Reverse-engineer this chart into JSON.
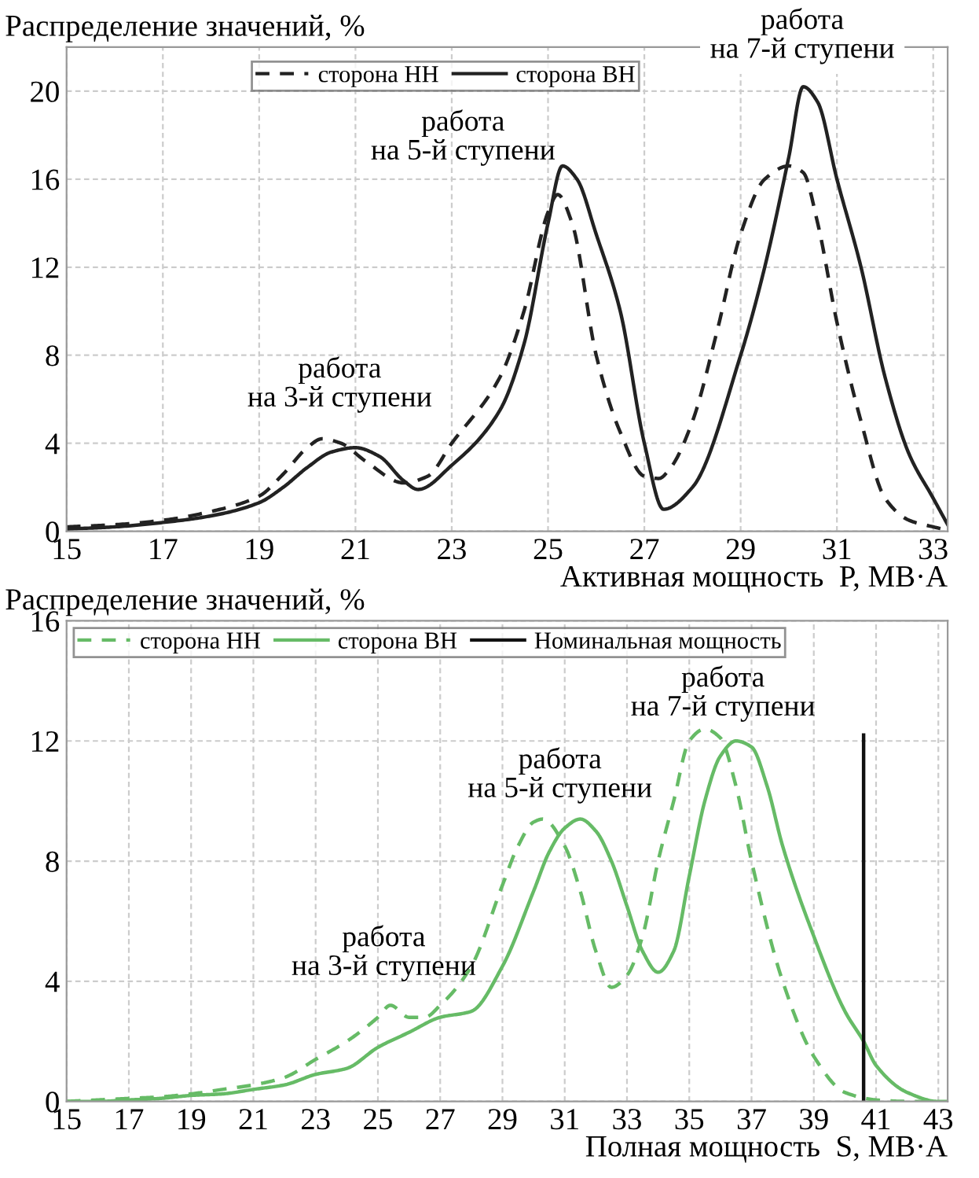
{
  "chart_data": [
    {
      "type": "line",
      "ylabel": "Распределение значений, %",
      "xlabel": "Активная мощность  P, МВ·А",
      "xlim": [
        15,
        33.3
      ],
      "xticks": [
        15,
        17,
        19,
        21,
        23,
        25,
        27,
        29,
        31,
        33
      ],
      "ylim": [
        0,
        22
      ],
      "yticks": [
        0,
        4,
        8,
        12,
        16,
        20
      ],
      "grid": true,
      "legend": "top",
      "marker": "none",
      "series": [
        {
          "name": "сторона НН",
          "color": "#222222",
          "line_style": "dashed",
          "x": [
            15,
            16,
            17,
            18,
            19,
            19.5,
            20,
            20.3,
            20.7,
            21.2,
            22,
            22.5,
            23,
            24,
            24.5,
            25,
            25.2,
            25.5,
            26,
            26.5,
            27,
            27.3,
            27.55,
            28,
            28.5,
            29,
            29.5,
            30,
            30.3,
            30.6,
            31,
            31.5,
            32,
            32.5,
            33,
            33.3
          ],
          "values": [
            0.2,
            0.3,
            0.5,
            0.9,
            1.6,
            2.6,
            3.8,
            4.2,
            4.0,
            3.2,
            2.2,
            2.5,
            4,
            7,
            10,
            14.5,
            15.3,
            14,
            8,
            4.5,
            2.5,
            2.4,
            2.9,
            5,
            9,
            13.5,
            16,
            16.6,
            16.3,
            14,
            9.5,
            5,
            1.5,
            0.5,
            0.2,
            0.05
          ]
        },
        {
          "name": "сторона ВН",
          "color": "#222222",
          "line_style": "solid",
          "x": [
            15,
            16,
            17,
            18,
            19,
            19.5,
            20,
            20.5,
            21,
            21.5,
            22,
            22.3,
            23,
            24,
            24.5,
            25,
            25.3,
            25.6,
            26,
            26.5,
            27,
            27.4,
            28,
            29,
            29.5,
            30,
            30.3,
            30.6,
            31,
            31.5,
            32,
            32.5,
            33,
            33.3
          ],
          "values": [
            0.1,
            0.2,
            0.4,
            0.7,
            1.3,
            2,
            2.9,
            3.6,
            3.8,
            3.4,
            2.3,
            1.9,
            3,
            5.5,
            8.5,
            14,
            16.6,
            16,
            13.5,
            10,
            4,
            1,
            2,
            8,
            12,
            17,
            20.2,
            19.5,
            16,
            12,
            7,
            3.5,
            1.5,
            0.3
          ]
        }
      ],
      "annotations": [
        "работа\nна 3-й ступени",
        "работа\nна 5-й ступени",
        "работа\nна 7-й ступени"
      ]
    },
    {
      "type": "line",
      "ylabel": "Распределение значений, %",
      "xlabel": "Полная мощность  S, МВ·А",
      "xlim": [
        15,
        43.3
      ],
      "xticks": [
        15,
        17,
        19,
        21,
        23,
        25,
        27,
        29,
        31,
        33,
        35,
        37,
        39,
        41,
        43
      ],
      "ylim": [
        0,
        16
      ],
      "yticks": [
        0,
        4,
        8,
        12,
        16
      ],
      "grid": true,
      "legend": "top left",
      "marker": "none",
      "series": [
        {
          "name": "сторона НН",
          "color": "#66bb66",
          "line_style": "dashed",
          "x": [
            15,
            16,
            17,
            18,
            19,
            20,
            21,
            22,
            23,
            24,
            25,
            25.4,
            26,
            26.5,
            27,
            28,
            29,
            29.5,
            30,
            30.3,
            31,
            31.5,
            32,
            32.5,
            33,
            33.5,
            34,
            34.5,
            35,
            35.5,
            36,
            36.5,
            37,
            38,
            39,
            40,
            41,
            42,
            43
          ],
          "values": [
            0,
            0.05,
            0.1,
            0.15,
            0.25,
            0.4,
            0.55,
            0.8,
            1.4,
            2,
            2.8,
            3.2,
            2.8,
            2.8,
            3.2,
            4.5,
            7.2,
            8.5,
            9.3,
            9.4,
            8.5,
            7,
            5,
            3.8,
            4.2,
            5.5,
            8,
            10,
            12,
            12.4,
            12.1,
            10.5,
            8,
            4,
            1.5,
            0.3,
            0.05,
            0,
            0
          ]
        },
        {
          "name": "сторона ВН",
          "color": "#66bb66",
          "line_style": "solid",
          "x": [
            15,
            16,
            17,
            18,
            19,
            20,
            21,
            22,
            23,
            24,
            25,
            26,
            27,
            28,
            29,
            30,
            30.5,
            31,
            31.5,
            32,
            32.5,
            33,
            33.5,
            34,
            34.5,
            35,
            35.5,
            36,
            36.5,
            37,
            37.5,
            38,
            39,
            40,
            40.6,
            41,
            42,
            43,
            43.3
          ],
          "values": [
            0,
            0,
            0.05,
            0.1,
            0.2,
            0.25,
            0.4,
            0.55,
            0.9,
            1.1,
            1.8,
            2.3,
            2.8,
            3,
            4.5,
            7,
            8.3,
            9.1,
            9.4,
            9,
            8,
            6.5,
            5,
            4.3,
            5,
            7.5,
            10,
            11.5,
            12,
            11.8,
            10.5,
            8.5,
            5.5,
            3,
            2,
            1.2,
            0.3,
            0,
            0
          ]
        },
        {
          "name": "Номинальная мощность",
          "color": "#111111",
          "line_style": "solid",
          "x": [
            40.6,
            40.6
          ],
          "values": [
            0,
            12.2
          ]
        }
      ],
      "annotations": [
        "работа\nна 3-й ступени",
        "работа\nна 5-й ступени",
        "работа\nна 7-й ступени"
      ]
    }
  ]
}
